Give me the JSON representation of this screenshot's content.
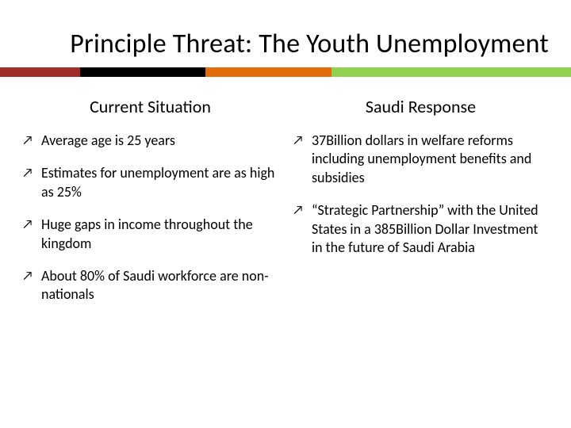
{
  "title": "Principle Threat: The Youth Unemployment",
  "title_fontsize": 34,
  "title_color": "#000000",
  "background_color": "#ffffff",
  "color_bar": {
    "height": 12,
    "segments": [
      {
        "color": "#a02b28",
        "width_pct": 14
      },
      {
        "color": "#000000",
        "width_pct": 22
      },
      {
        "color": "#e36c0a",
        "width_pct": 22
      },
      {
        "color": "#92d050",
        "width_pct": 42
      }
    ]
  },
  "columns": [
    {
      "heading": "Current Situation",
      "bullets": [
        "Average age is 25 years",
        "Estimates for unemployment are as high as 25%",
        "Huge gaps in income throughout the kingdom",
        "About 80% of Saudi workforce are non-nationals"
      ]
    },
    {
      "heading": "Saudi Response",
      "bullets": [
        "37Billion dollars in welfare reforms including unemployment benefits and subsidies",
        "“Strategic Partnership” with the United States in a 385Billion Dollar Investment in the future of Saudi Arabia"
      ]
    }
  ],
  "bullet_glyph": "↗",
  "body_fontsize": 18,
  "heading_fontsize": 22
}
